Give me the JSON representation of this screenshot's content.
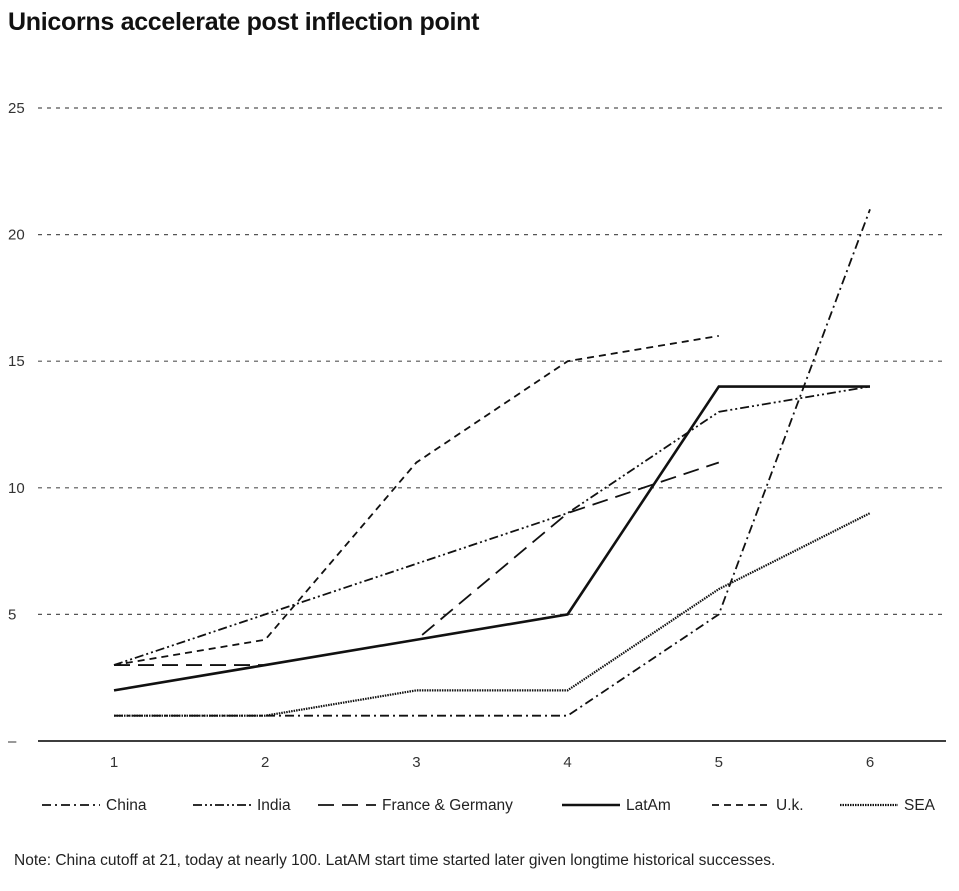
{
  "chart_data": {
    "type": "line",
    "title": "Unicorns accelerate post inflection point",
    "xlabel": "",
    "ylabel": "",
    "x": [
      1,
      2,
      3,
      4,
      5,
      6
    ],
    "x_tick_labels": [
      "1",
      "2",
      "3",
      "4",
      "5",
      "6"
    ],
    "y_tick_labels": [
      "–",
      "5",
      "10",
      "15",
      "20",
      "25"
    ],
    "y_ticks": [
      0,
      5,
      10,
      15,
      20,
      25
    ],
    "ylim": [
      0,
      25
    ],
    "grid": "horizontal dotted",
    "legend_position": "bottom",
    "series": [
      {
        "name": "China",
        "style": "dash-dot",
        "values": [
          1,
          1,
          1,
          1,
          5,
          21
        ]
      },
      {
        "name": "India",
        "style": "dash-dot-dot",
        "values": [
          3,
          5,
          7,
          9,
          13,
          14
        ]
      },
      {
        "name": "France & Germany",
        "style": "long-dash",
        "values": [
          3,
          3,
          4,
          9,
          11,
          null
        ]
      },
      {
        "name": "LatAm",
        "style": "solid",
        "values": [
          2,
          3,
          4,
          5,
          14,
          14
        ]
      },
      {
        "name": "U.k.",
        "style": "short-dash",
        "values": [
          3,
          4,
          11,
          15,
          16,
          null
        ]
      },
      {
        "name": "SEA",
        "style": "dotted",
        "values": [
          1,
          1,
          2,
          2,
          6,
          9
        ]
      }
    ],
    "note": "Note: China cutoff at 21, today at nearly 100. LatAM start time started later given longtime historical successes."
  },
  "colors": {
    "line": "#111111",
    "grid": "#555555"
  }
}
